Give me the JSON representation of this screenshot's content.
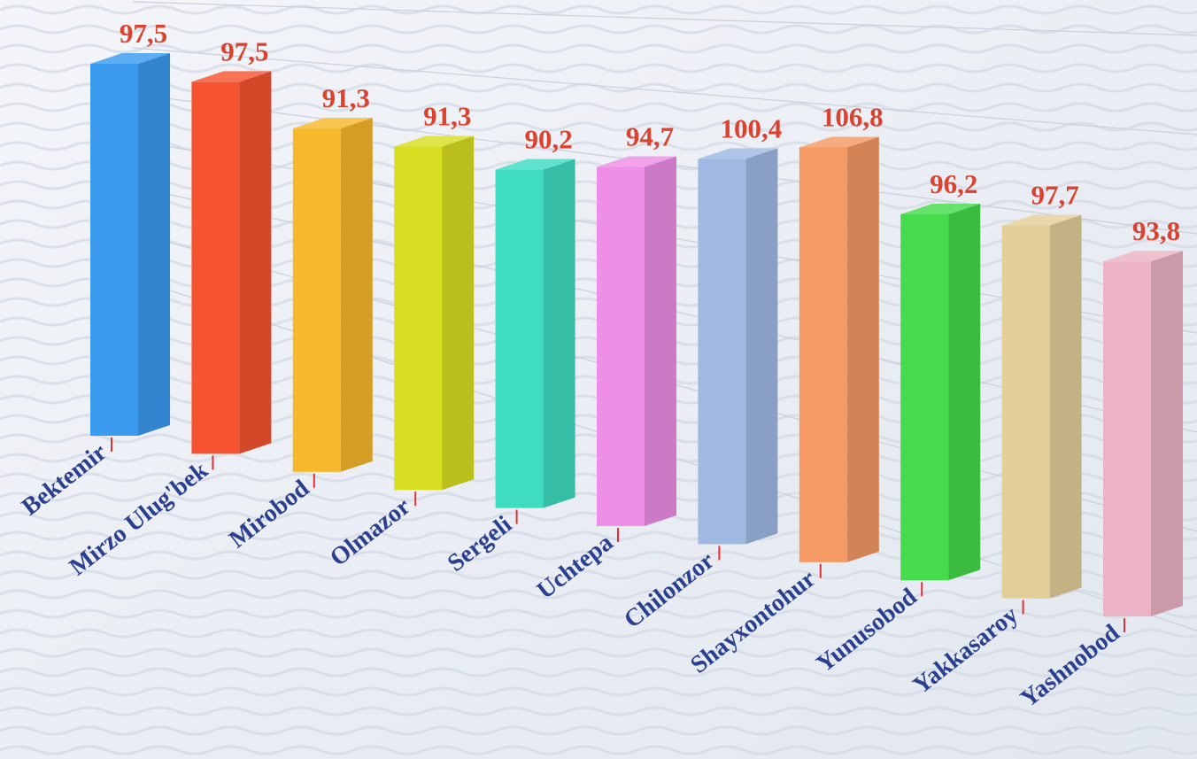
{
  "chart_data": {
    "type": "bar",
    "categories": [
      "Bektemir",
      "Mirzo Ulug'bek",
      "Mirobod",
      "Olmazor",
      "Sergeli",
      "Uchtepa",
      "Chilonzor",
      "Shayxontohur",
      "Yunusobod",
      "Yakkasaroy",
      "Yashnobod"
    ],
    "values": [
      97.5,
      97.5,
      91.3,
      91.3,
      90.2,
      94.7,
      100.4,
      106.8,
      96.2,
      97.7,
      93.8
    ],
    "value_labels": [
      "97,5",
      "97,5",
      "91,3",
      "91,3",
      "90,2",
      "94,7",
      "100,4",
      "106,8",
      "96,2",
      "97,7",
      "93,8"
    ],
    "colors": [
      "#3a9bef",
      "#f65431",
      "#f7b82c",
      "#d8de22",
      "#3edcc1",
      "#ee8ee6",
      "#9fb9e3",
      "#f59a64",
      "#45db4c",
      "#e3cf9a",
      "#ebb3c5"
    ],
    "grid": true,
    "legend": "none",
    "style": "3d-column"
  }
}
